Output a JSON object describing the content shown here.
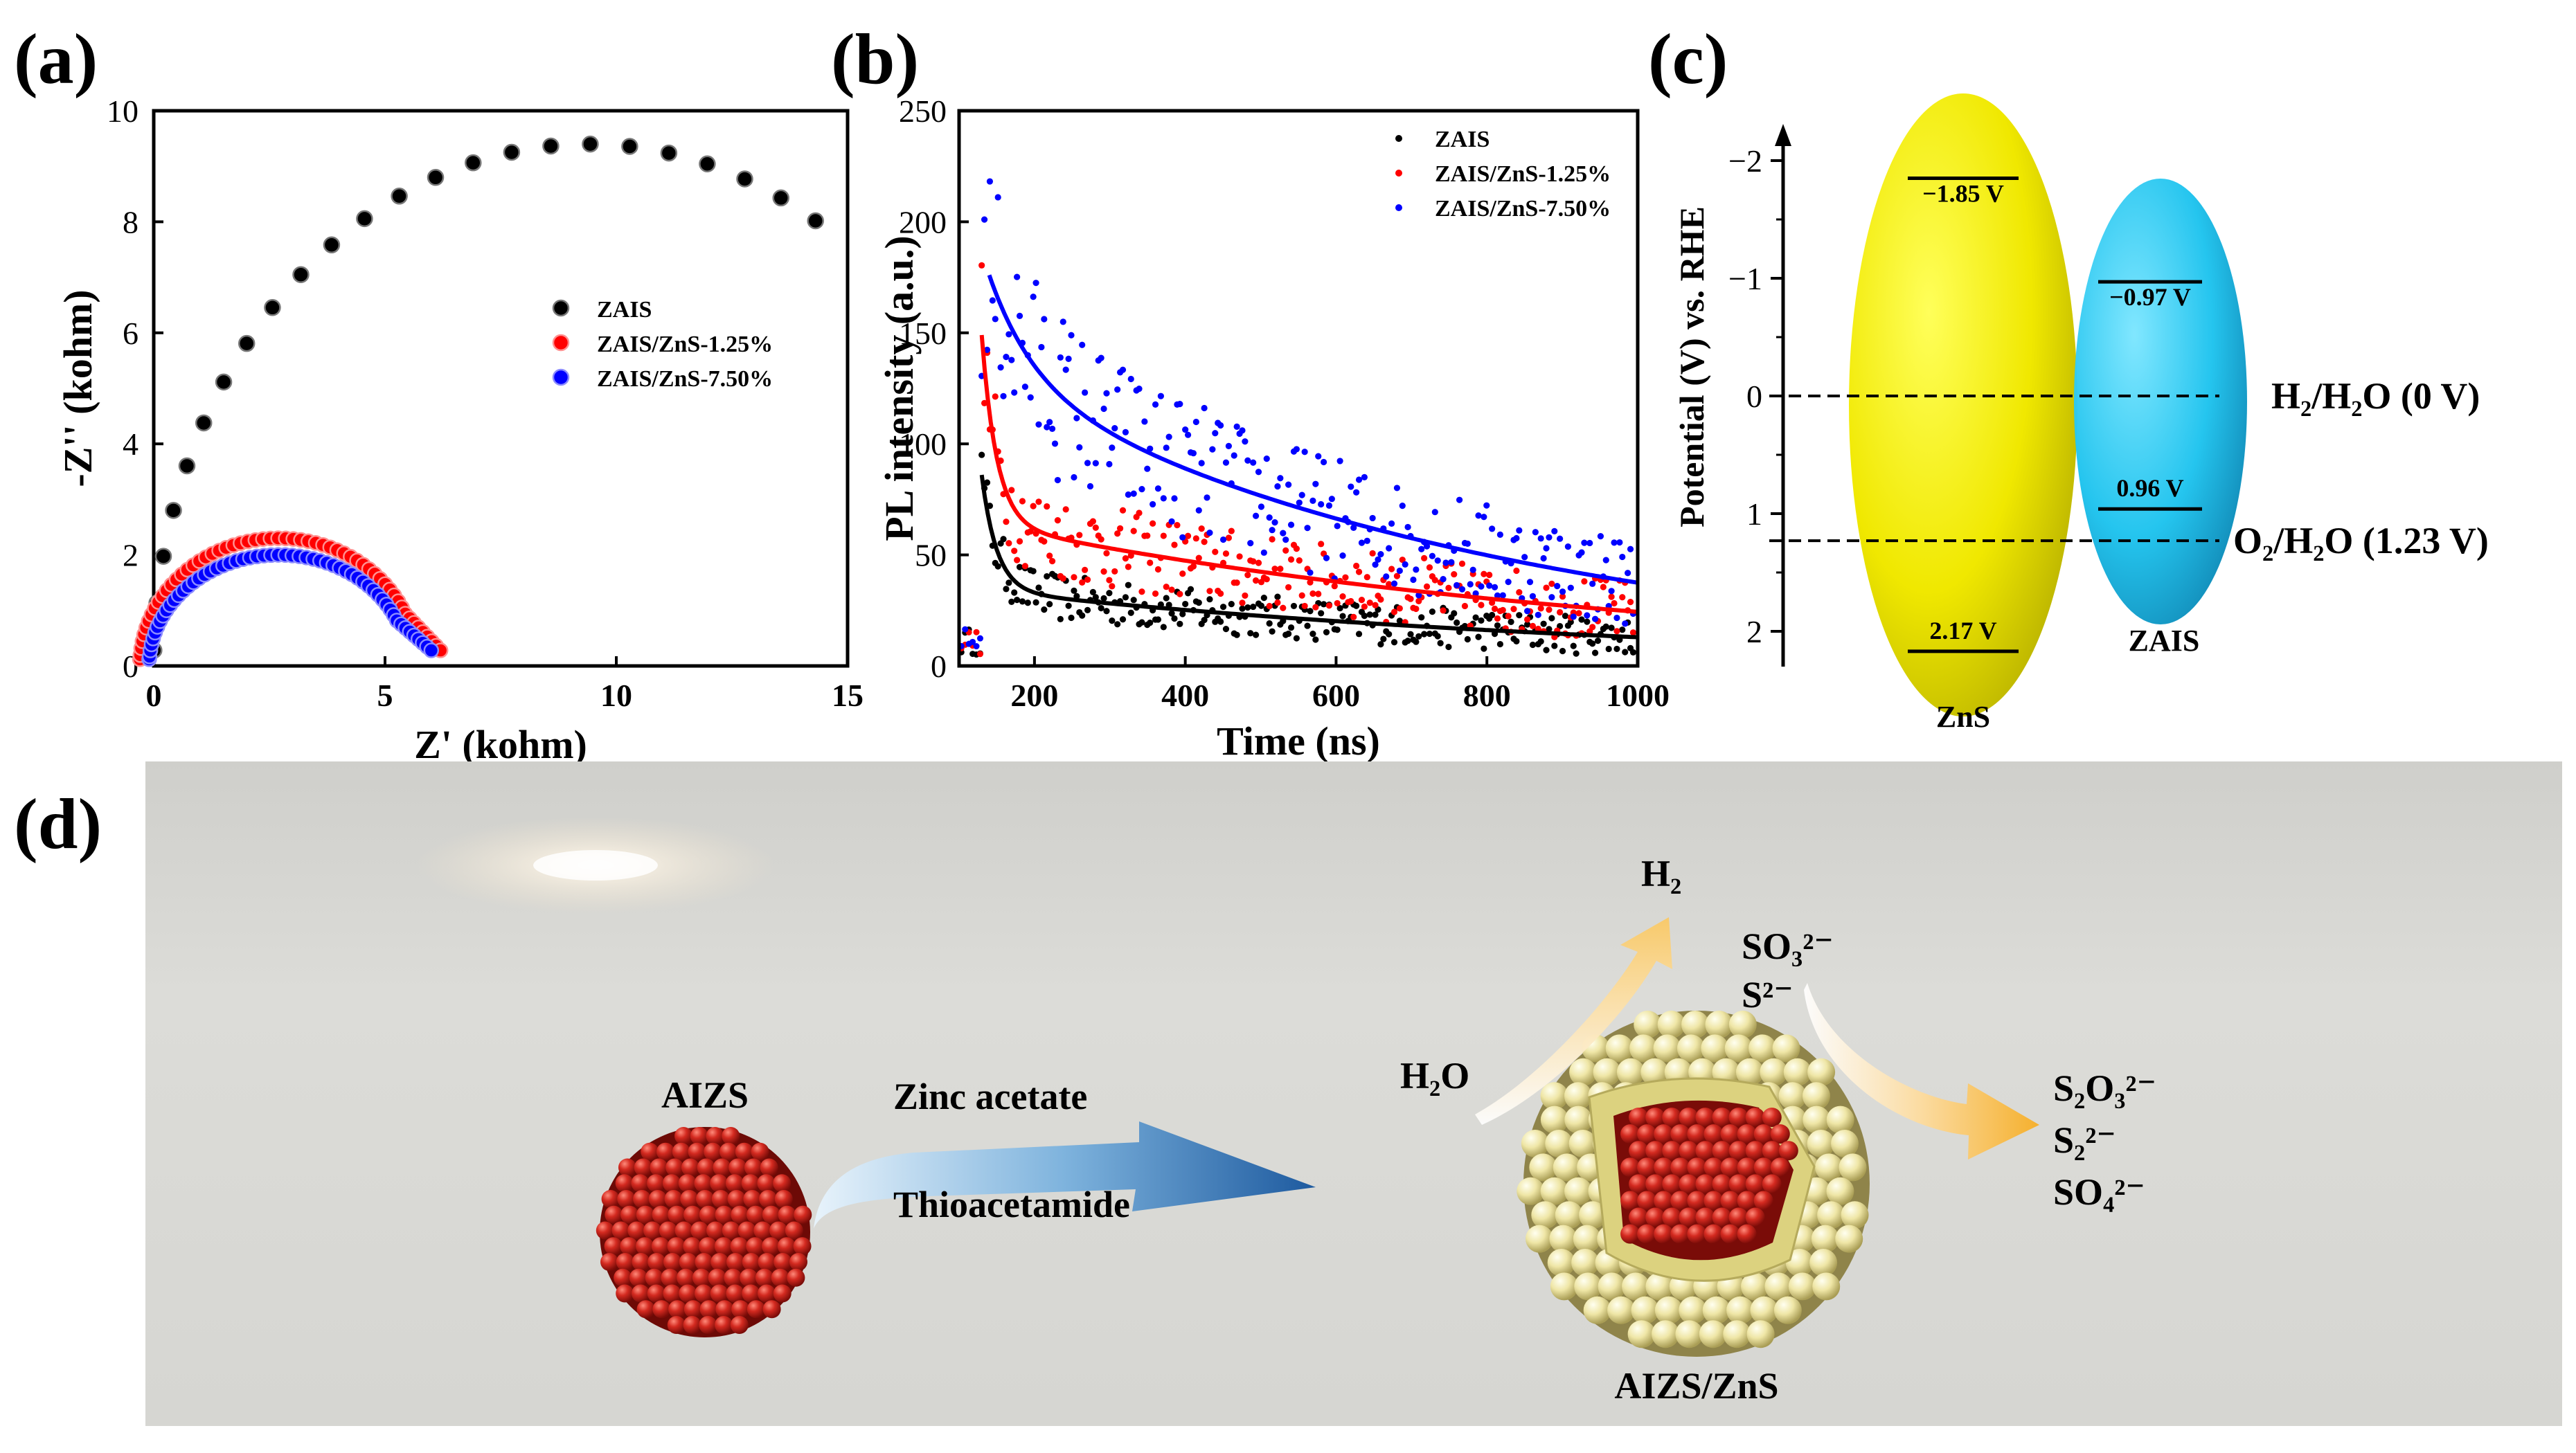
{
  "panel_labels": {
    "a": "(a)",
    "b": "(b)",
    "c": "(c)",
    "d": "(d)"
  },
  "chart_data": [
    {
      "id": "a",
      "type": "scatter",
      "title": "",
      "xlabel": "Z' (kohm)",
      "ylabel": "-Z'' (kohm)",
      "xlim": [
        0,
        15
      ],
      "ylim": [
        0,
        10
      ],
      "xticks": [
        0,
        5,
        10,
        15
      ],
      "yticks": [
        0,
        2,
        4,
        6,
        8,
        10
      ],
      "legend_position": "center-right",
      "series": [
        {
          "name": "ZAIS",
          "color": "#000000",
          "shape": "semicircle",
          "center": 9.4,
          "radius": 9.4,
          "t_start": 0.03,
          "t_end": 2.12,
          "points": 24
        },
        {
          "name": "ZAIS/ZnS-1.25%",
          "color": "#ff0000",
          "shape": "semicircle",
          "center": 2.7,
          "radius": 3.0,
          "height": 2.3,
          "t_start": 0.03,
          "t_end": 2.72,
          "points": 50,
          "tail_end": [
            6.2,
            0.28
          ]
        },
        {
          "name": "ZAIS/ZnS-7.50%",
          "color": "#0000ff",
          "shape": "semicircle",
          "center": 2.7,
          "radius": 2.8,
          "height": 2.0,
          "t_start": 0.03,
          "t_end": 2.72,
          "points": 50,
          "tail_end": [
            6.0,
            0.28
          ]
        }
      ]
    },
    {
      "id": "b",
      "type": "scatter",
      "title": "",
      "xlabel": "Time (ns)",
      "ylabel": "PL intensity (a.u.)",
      "xlim": [
        100,
        1000
      ],
      "ylim": [
        0,
        250
      ],
      "xticks": [
        200,
        400,
        600,
        800,
        1000
      ],
      "yticks": [
        0,
        50,
        100,
        150,
        200,
        250
      ],
      "legend_position": "top-right",
      "series": [
        {
          "name": "ZAIS",
          "color": "#000000",
          "fit": {
            "a1": 52,
            "t1": 20,
            "a2": 34,
            "t2": 900,
            "x0": 130
          },
          "noise": 14
        },
        {
          "name": "ZAIS/ZnS-1.25%",
          "color": "#ff0000",
          "fit": {
            "a1": 85,
            "t1": 20,
            "a2": 64,
            "t2": 900,
            "x0": 130
          },
          "noise": 20
        },
        {
          "name": "ZAIS/ZnS-7.50%",
          "color": "#0000ff",
          "fit": {
            "a1": 48,
            "t1": 60,
            "a2": 128,
            "t2": 700,
            "x0": 140
          },
          "noise": 26
        }
      ]
    },
    {
      "id": "c",
      "type": "band_diagram",
      "ylabel": "Potential (V) vs. RHE",
      "ylim": [
        2.3,
        -2.3
      ],
      "yticks": [
        2,
        1,
        0,
        -1,
        -2
      ],
      "ytick_labels": [
        "2",
        "1",
        "0",
        "−1",
        "−2"
      ],
      "materials": [
        {
          "name": "ZnS",
          "color": "#f0e800",
          "cb": -1.85,
          "vb": 2.17,
          "cb_label": "−1.85 V",
          "vb_label": "2.17 V"
        },
        {
          "name": "ZAIS",
          "color": "#1ec3ee",
          "cb": -0.97,
          "vb": 0.96,
          "cb_label": "−0.97 V",
          "vb_label": "0.96 V"
        }
      ],
      "reference_lines": [
        {
          "value": 0,
          "label": "H₂/H₂O (0 V)"
        },
        {
          "value": 1.23,
          "label": "O₂/H₂O (1.23 V)"
        }
      ]
    }
  ],
  "schematic": {
    "precursor_label": "AIZS",
    "reagent_1": "Zinc acetate",
    "reagent_2": "Thioacetamide",
    "product_label": "AIZS/ZnS",
    "h2o": "H₂O",
    "h2": "H₂",
    "sacrificial_1": "SO₃²⁻",
    "sacrificial_2": "S²⁻",
    "product_1": "S₂O₃²⁻",
    "product_2": "S₂²⁻",
    "product_3": "SO₄²⁻"
  },
  "colors": {
    "red_sphere": "#d42a20",
    "shell_sphere": "#efe6a6",
    "arrow_blue": "#2a6bb0",
    "arrow_orange": "#f6b43a",
    "background_panel": "#d8d8d4"
  }
}
